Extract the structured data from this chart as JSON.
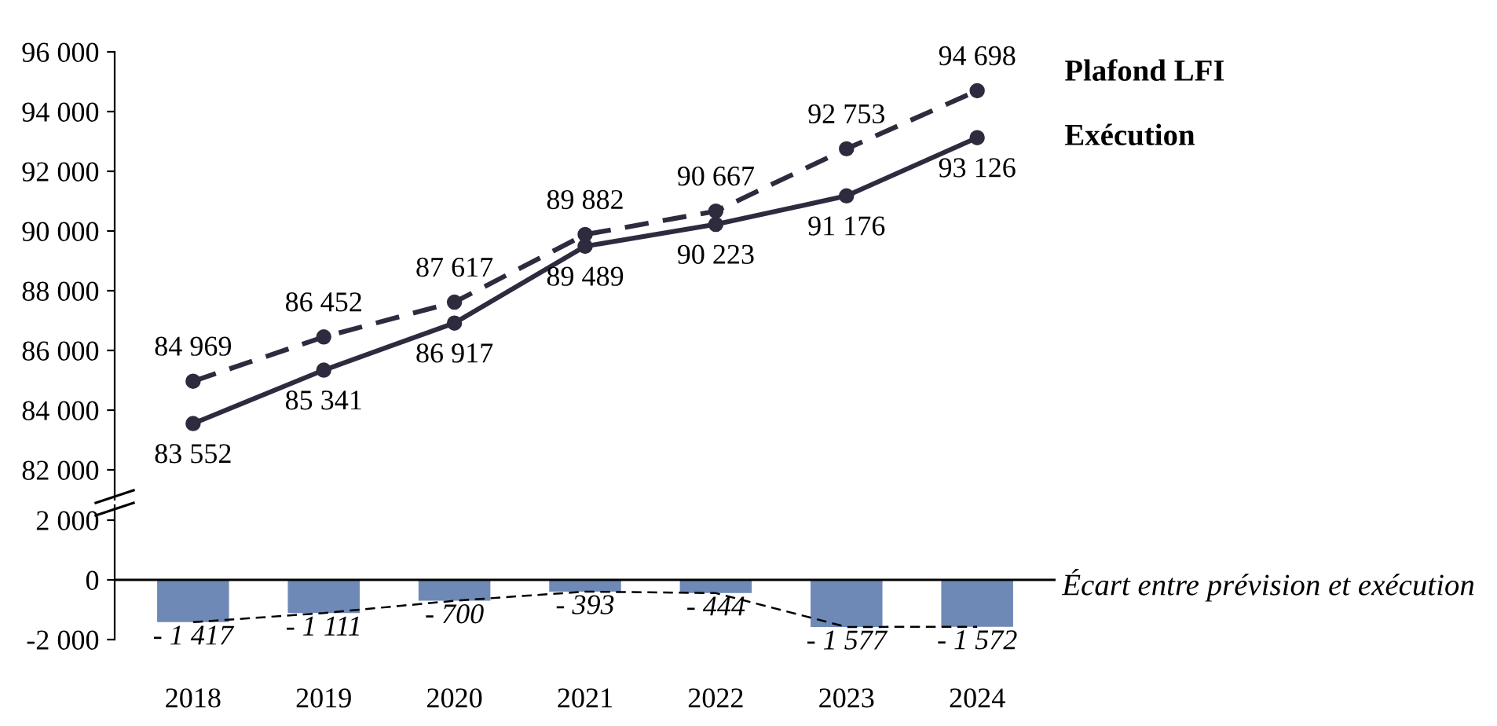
{
  "chart_data": [
    {
      "type": "line",
      "categories": [
        "2018",
        "2019",
        "2020",
        "2021",
        "2022",
        "2023",
        "2024"
      ],
      "tick_labels": "y",
      "marker": "circle",
      "legend": false,
      "grid": false,
      "ylim": [
        81000,
        96000
      ],
      "yticks": [
        {
          "value": 82000,
          "label": "82 000"
        },
        {
          "value": 84000,
          "label": "84 000"
        },
        {
          "value": 86000,
          "label": "86 000"
        },
        {
          "value": 88000,
          "label": "88 000"
        },
        {
          "value": 90000,
          "label": "90 000"
        },
        {
          "value": 92000,
          "label": "92 000"
        },
        {
          "value": 94000,
          "label": "94 000"
        },
        {
          "value": 96000,
          "label": "96 000"
        }
      ],
      "series": [
        {
          "name": "Plafond LFI",
          "color": "#2e2b3f",
          "line_style": "dashed",
          "values": [
            84969,
            86452,
            87617,
            89882,
            90667,
            92753,
            94698
          ],
          "value_labels": [
            "84 969",
            "86 452",
            "87 617",
            "89 882",
            "90 667",
            "92 753",
            "94 698"
          ]
        },
        {
          "name": "Exécution",
          "color": "#2e2b3f",
          "line_style": "solid",
          "values": [
            83552,
            85341,
            86917,
            89489,
            90223,
            91176,
            93126
          ],
          "value_labels": [
            "83 552",
            "85 341",
            "86 917",
            "89 489",
            "90 223",
            "91 176",
            "93 126"
          ]
        }
      ]
    },
    {
      "type": "bar",
      "categories": [
        "2018",
        "2019",
        "2020",
        "2021",
        "2022",
        "2023",
        "2024"
      ],
      "legend": false,
      "grid": false,
      "ylim": [
        -2000,
        2500
      ],
      "yticks": [
        {
          "value": -2000,
          "label": "-2 000"
        },
        0,
        {
          "value": 2000,
          "label": "2 000"
        }
      ],
      "ref_lines": [
        {
          "axis": "y",
          "value": 0,
          "color": "#000000"
        }
      ],
      "series": [
        {
          "name": "Écart entre prévision et exécution",
          "color": "#6f89b6",
          "values": [
            -1417,
            -1111,
            -700,
            -393,
            -444,
            -1577,
            -1572
          ],
          "value_labels": [
            "- 1 417",
            "- 1 111",
            "- 700",
            "- 393",
            "- 444",
            "- 1 577",
            "- 1 572"
          ]
        },
        {
          "type": "line",
          "color": "#000000",
          "line_style": "dashed",
          "marker": "none",
          "values": [
            -1417,
            -1111,
            -700,
            -393,
            -444,
            -1577,
            -1572
          ]
        }
      ]
    }
  ]
}
